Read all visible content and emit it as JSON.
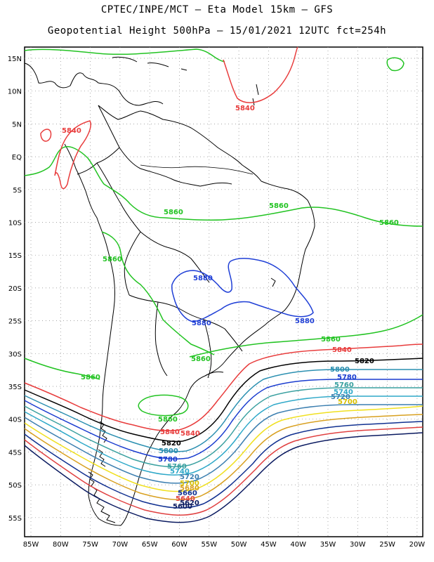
{
  "header": {
    "line1": "CPTEC/INPE/MCT –  Eta Model 15km – GFS",
    "line2": "Geopotential Height 500hPa – 15/01/2021 12UTC fct=254h"
  },
  "map": {
    "lat_labels": [
      "15N",
      "10N",
      "5N",
      "EQ",
      "5S",
      "10S",
      "15S",
      "20S",
      "25S",
      "30S",
      "35S",
      "40S",
      "45S",
      "50S",
      "55S"
    ],
    "lon_labels": [
      "85W",
      "80W",
      "75W",
      "70W",
      "65W",
      "60W",
      "55W",
      "50W",
      "45W",
      "40W",
      "35W",
      "30W",
      "25W",
      "20W"
    ],
    "grid": "dotted",
    "coastline_color": "#000000"
  },
  "contours": [
    {
      "value": "5880",
      "color": "#1f3fd6",
      "labels": [
        "5880",
        "5880",
        "5880"
      ]
    },
    {
      "value": "5860",
      "color": "#22c322",
      "labels": [
        "5860",
        "5860",
        "5860",
        "5860",
        "5860",
        "5860",
        "5860",
        "5860"
      ]
    },
    {
      "value": "5840",
      "color": "#e83c3c",
      "labels": [
        "5840",
        "5840",
        "5840",
        "5840",
        "5840"
      ]
    },
    {
      "value": "5820",
      "color": "#000000",
      "labels": [
        "5820",
        "5820"
      ]
    },
    {
      "value": "5800",
      "color": "#2a8fb0",
      "labels": [
        "5800",
        "5800"
      ]
    },
    {
      "value": "5780",
      "color": "#1a3ccf",
      "labels": [
        "5780",
        "5780"
      ]
    },
    {
      "value": "5760",
      "color": "#3aa0a0",
      "labels": [
        "5760",
        "5760"
      ]
    },
    {
      "value": "5740",
      "color": "#2ea8c8",
      "labels": [
        "5740",
        "5740"
      ]
    },
    {
      "value": "5720",
      "color": "#3c7fb0",
      "labels": [
        "5720",
        "5720"
      ]
    },
    {
      "value": "5700",
      "color": "#f0e020",
      "labels": [
        "5700",
        "5700"
      ]
    },
    {
      "value": "5680",
      "color": "#d8a020",
      "labels": [
        "5680"
      ]
    },
    {
      "value": "5660",
      "color": "#103090",
      "labels": [
        "5660"
      ]
    },
    {
      "value": "5640",
      "color": "#e04040",
      "labels": [
        "5640"
      ]
    },
    {
      "value": "5620",
      "color": "#0a1a60",
      "labels": [
        "5620"
      ]
    },
    {
      "value": "5600",
      "color": "#0a1a60",
      "labels": [
        "5600"
      ]
    }
  ]
}
